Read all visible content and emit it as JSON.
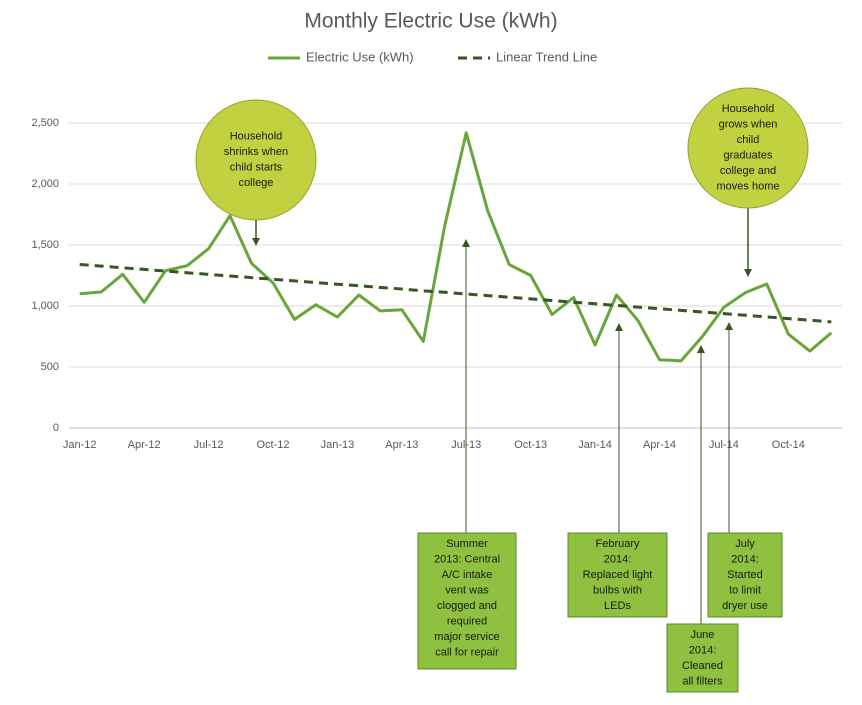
{
  "chart_data": {
    "type": "line",
    "title": "Monthly Electric Use (kWh)",
    "categories": [
      "Jan-12",
      null,
      null,
      "Apr-12",
      null,
      null,
      "Jul-12",
      null,
      null,
      "Oct-12",
      null,
      null,
      "Jan-13",
      null,
      null,
      "Apr-13",
      null,
      null,
      "Jul-13",
      null,
      null,
      "Oct-13",
      null,
      null,
      "Jan-14",
      null,
      null,
      "Apr-14",
      null,
      null,
      "Jul-14",
      null,
      null,
      "Oct-14",
      null,
      null
    ],
    "series": [
      {
        "name": "Electric Use (kWh)",
        "color": "#6aa53a",
        "dashed": false,
        "values": [
          1100,
          1115,
          1260,
          1030,
          1290,
          1330,
          1470,
          1740,
          1350,
          1190,
          890,
          1010,
          910,
          1090,
          960,
          970,
          710,
          1660,
          2420,
          1780,
          1340,
          1250,
          930,
          1070,
          680,
          1090,
          880,
          560,
          550,
          750,
          990,
          1110,
          1180,
          770,
          630,
          780
        ]
      },
      {
        "name": "Linear Trend Line",
        "color": "#375623",
        "dashed": true,
        "values": [
          1340,
          1327,
          1313,
          1300,
          1286,
          1273,
          1259,
          1246,
          1233,
          1219,
          1206,
          1192,
          1179,
          1166,
          1152,
          1139,
          1125,
          1112,
          1098,
          1085,
          1072,
          1058,
          1045,
          1031,
          1018,
          1005,
          991,
          978,
          964,
          951,
          938,
          924,
          911,
          897,
          884,
          870
        ]
      }
    ],
    "ylim": [
      0,
      2500
    ],
    "yticks": [
      0,
      500,
      {
        "value": 1000,
        "label": "1,000"
      },
      {
        "value": 1500,
        "label": "1,500"
      },
      {
        "value": 2000,
        "label": "2,000"
      },
      {
        "value": 2500,
        "label": "2,500"
      }
    ],
    "grid": true,
    "legend": "top",
    "annotations": [
      {
        "lines": [
          "Household",
          "shrinks when",
          "child starts",
          "college"
        ]
      },
      {
        "lines": [
          "Household",
          "grows when",
          "child",
          "graduates",
          "college and",
          "moves home"
        ]
      },
      {
        "lines": [
          "Summer",
          "2013: Central",
          "A/C intake",
          "vent was",
          "clogged and",
          "required",
          "major service",
          "call for repair"
        ]
      },
      {
        "lines": [
          "February",
          "2014:",
          "Replaced light",
          "bulbs with",
          "LEDs"
        ]
      },
      {
        "lines": [
          "June",
          "2014:",
          "Cleaned",
          "all filters"
        ]
      },
      {
        "lines": [
          "July",
          "2014:",
          "Started",
          "to limit",
          "dryer use"
        ]
      }
    ]
  }
}
